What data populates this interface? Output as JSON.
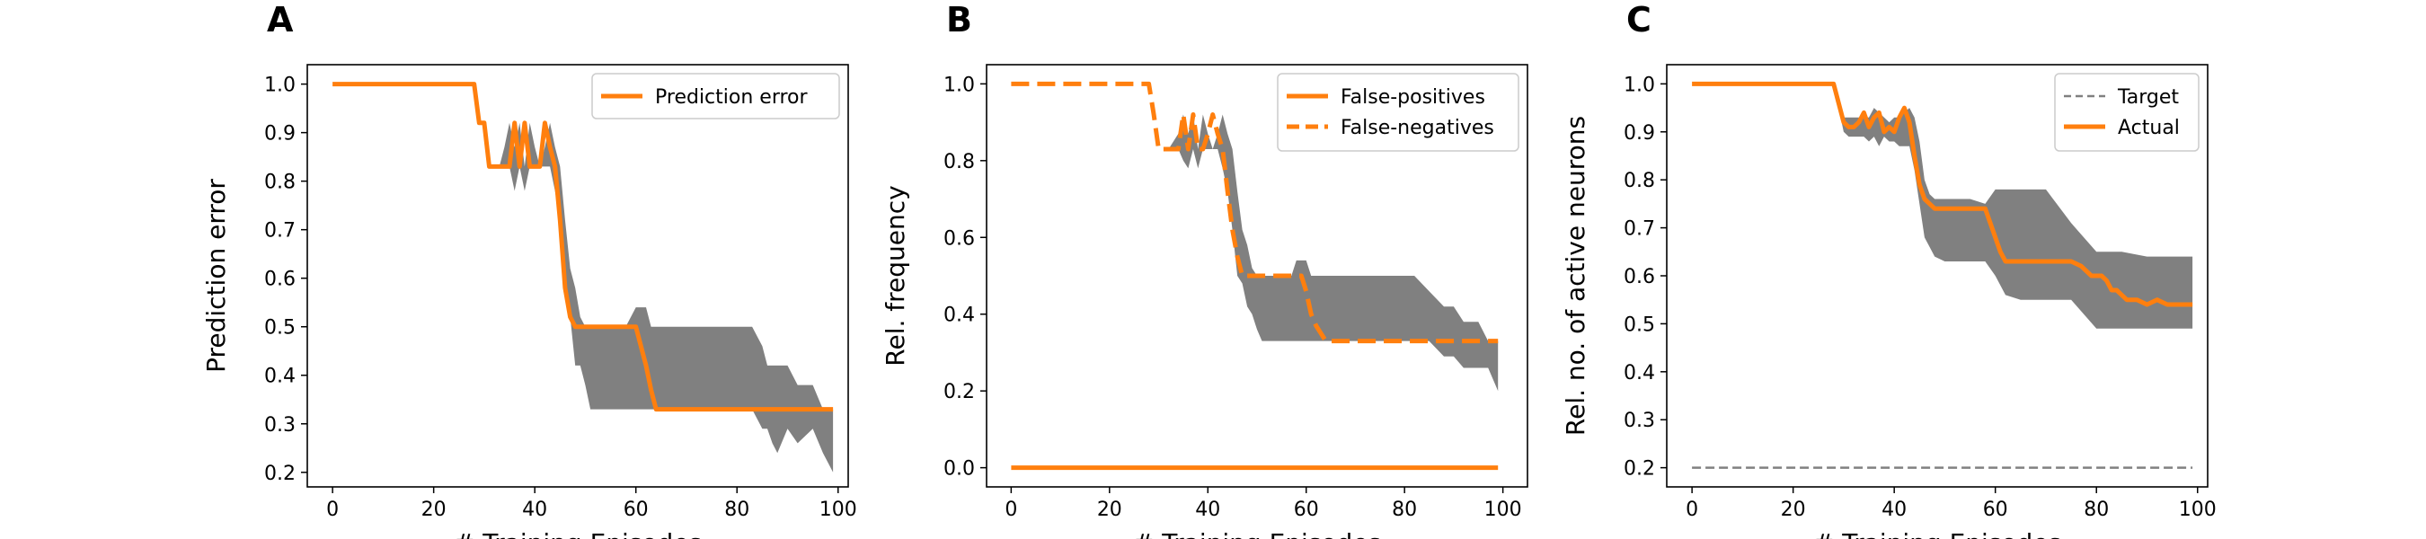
{
  "chart_data": [
    {
      "type": "line",
      "panel_label": "A",
      "xlabel": "# Training Episodes",
      "ylabel": "Prediction error",
      "xlim": [
        -5,
        102
      ],
      "ylim": [
        0.17,
        1.04
      ],
      "xticks": [
        0,
        20,
        40,
        60,
        80,
        100
      ],
      "yticks": [
        0.2,
        0.3,
        0.4,
        0.5,
        0.6,
        0.7,
        0.8,
        0.9,
        1.0
      ],
      "legend_position": "upper right",
      "colors": {
        "line": "#ff7f0e",
        "band": "#808080"
      },
      "band": {
        "x": [
          0,
          28,
          29,
          30,
          31,
          32,
          33,
          34,
          35,
          36,
          37,
          38,
          39,
          40,
          41,
          42,
          43,
          44,
          45,
          46,
          47,
          48,
          49,
          50,
          51,
          52,
          55,
          58,
          60,
          61,
          62,
          63,
          65,
          70,
          75,
          80,
          83,
          85,
          86,
          87,
          88,
          90,
          92,
          95,
          97,
          99
        ],
        "lower": [
          1.0,
          1.0,
          0.92,
          0.92,
          0.83,
          0.83,
          0.83,
          0.83,
          0.83,
          0.78,
          0.83,
          0.78,
          0.83,
          0.83,
          0.83,
          0.83,
          0.83,
          0.78,
          0.72,
          0.56,
          0.52,
          0.42,
          0.42,
          0.38,
          0.33,
          0.33,
          0.33,
          0.33,
          0.33,
          0.33,
          0.33,
          0.33,
          0.33,
          0.33,
          0.33,
          0.33,
          0.33,
          0.29,
          0.29,
          0.26,
          0.24,
          0.29,
          0.26,
          0.29,
          0.24,
          0.2
        ],
        "upper": [
          1.0,
          1.0,
          0.92,
          0.92,
          0.83,
          0.83,
          0.83,
          0.87,
          0.92,
          0.87,
          0.92,
          0.83,
          0.92,
          0.87,
          0.83,
          0.87,
          0.92,
          0.87,
          0.83,
          0.72,
          0.62,
          0.58,
          0.52,
          0.5,
          0.5,
          0.5,
          0.5,
          0.5,
          0.54,
          0.54,
          0.54,
          0.5,
          0.5,
          0.5,
          0.5,
          0.5,
          0.5,
          0.46,
          0.42,
          0.42,
          0.42,
          0.42,
          0.38,
          0.38,
          0.33,
          0.33
        ]
      },
      "series": [
        {
          "name": "Prediction error",
          "style": "solid",
          "x": [
            0,
            28,
            29,
            30,
            31,
            32,
            33,
            34,
            35,
            36,
            37,
            38,
            39,
            40,
            41,
            42,
            43,
            44,
            45,
            46,
            47,
            48,
            49,
            50,
            52,
            55,
            60,
            61,
            62,
            63,
            64,
            65,
            70,
            80,
            90,
            99
          ],
          "y": [
            1.0,
            1.0,
            0.92,
            0.92,
            0.83,
            0.83,
            0.83,
            0.83,
            0.83,
            0.92,
            0.83,
            0.92,
            0.83,
            0.83,
            0.83,
            0.92,
            0.87,
            0.83,
            0.72,
            0.58,
            0.52,
            0.5,
            0.5,
            0.5,
            0.5,
            0.5,
            0.5,
            0.46,
            0.42,
            0.37,
            0.33,
            0.33,
            0.33,
            0.33,
            0.33,
            0.33
          ]
        }
      ]
    },
    {
      "type": "line",
      "panel_label": "B",
      "xlabel": "# Training Episodes",
      "ylabel": "Rel. frequency",
      "xlim": [
        -5,
        105
      ],
      "ylim": [
        -0.05,
        1.05
      ],
      "xticks": [
        0,
        20,
        40,
        60,
        80,
        100
      ],
      "yticks": [
        0.0,
        0.2,
        0.4,
        0.6,
        0.8,
        1.0
      ],
      "legend_position": "upper right",
      "colors": {
        "line": "#ff7f0e",
        "band": "#808080"
      },
      "band": {
        "x": [
          28,
          30,
          32,
          34,
          35,
          36,
          37,
          38,
          39,
          40,
          41,
          42,
          43,
          44,
          45,
          46,
          47,
          48,
          49,
          50,
          51,
          52,
          55,
          57,
          58,
          59,
          60,
          61,
          62,
          63,
          64,
          65,
          70,
          80,
          82,
          85,
          88,
          90,
          92,
          95,
          97,
          99
        ],
        "lower": [
          1.0,
          0.83,
          0.83,
          0.83,
          0.8,
          0.78,
          0.83,
          0.78,
          0.83,
          0.83,
          0.83,
          0.83,
          0.78,
          0.72,
          0.62,
          0.5,
          0.48,
          0.42,
          0.4,
          0.36,
          0.33,
          0.33,
          0.33,
          0.33,
          0.33,
          0.33,
          0.33,
          0.33,
          0.33,
          0.33,
          0.33,
          0.33,
          0.33,
          0.33,
          0.33,
          0.33,
          0.29,
          0.29,
          0.26,
          0.26,
          0.26,
          0.2
        ],
        "upper": [
          1.0,
          0.83,
          0.83,
          0.87,
          0.92,
          0.87,
          0.92,
          0.83,
          0.92,
          0.87,
          0.83,
          0.87,
          0.92,
          0.87,
          0.83,
          0.72,
          0.62,
          0.58,
          0.52,
          0.5,
          0.5,
          0.5,
          0.5,
          0.5,
          0.54,
          0.54,
          0.54,
          0.5,
          0.5,
          0.5,
          0.5,
          0.5,
          0.5,
          0.5,
          0.5,
          0.46,
          0.42,
          0.42,
          0.38,
          0.38,
          0.33,
          0.33
        ]
      },
      "series": [
        {
          "name": "False-positives",
          "style": "solid",
          "x": [
            0,
            99
          ],
          "y": [
            0.0,
            0.0
          ]
        },
        {
          "name": "False-negatives",
          "style": "dashed",
          "x": [
            0,
            28,
            29,
            30,
            31,
            32,
            33,
            34,
            35,
            36,
            37,
            38,
            39,
            40,
            41,
            42,
            43,
            44,
            45,
            46,
            47,
            48,
            49,
            50,
            52,
            55,
            58,
            59,
            60,
            61,
            62,
            63,
            64,
            65,
            70,
            80,
            90,
            99
          ],
          "y": [
            1.0,
            1.0,
            0.92,
            0.83,
            0.83,
            0.83,
            0.83,
            0.83,
            0.92,
            0.83,
            0.92,
            0.83,
            0.83,
            0.87,
            0.92,
            0.87,
            0.83,
            0.72,
            0.62,
            0.55,
            0.5,
            0.5,
            0.5,
            0.5,
            0.5,
            0.5,
            0.5,
            0.5,
            0.46,
            0.4,
            0.37,
            0.35,
            0.33,
            0.33,
            0.33,
            0.33,
            0.33,
            0.33
          ]
        }
      ]
    },
    {
      "type": "line",
      "panel_label": "C",
      "xlabel": "# Training Episodes",
      "ylabel": "Rel. no. of active neurons",
      "xlim": [
        -5,
        102
      ],
      "ylim": [
        0.16,
        1.04
      ],
      "xticks": [
        0,
        20,
        40,
        60,
        80,
        100
      ],
      "yticks": [
        0.2,
        0.3,
        0.4,
        0.5,
        0.6,
        0.7,
        0.8,
        0.9,
        1.0
      ],
      "legend_position": "upper right",
      "colors": {
        "line": "#ff7f0e",
        "band": "#808080",
        "target": "#808080"
      },
      "band": {
        "x": [
          0,
          28,
          30,
          31,
          32,
          33,
          34,
          35,
          36,
          37,
          38,
          39,
          40,
          41,
          42,
          43,
          44,
          45,
          46,
          47,
          48,
          50,
          55,
          58,
          60,
          62,
          65,
          70,
          75,
          80,
          85,
          90,
          95,
          99
        ],
        "lower": [
          1.0,
          1.0,
          0.9,
          0.89,
          0.89,
          0.89,
          0.89,
          0.88,
          0.89,
          0.87,
          0.89,
          0.88,
          0.88,
          0.87,
          0.87,
          0.87,
          0.82,
          0.75,
          0.68,
          0.66,
          0.64,
          0.63,
          0.63,
          0.63,
          0.6,
          0.56,
          0.55,
          0.55,
          0.55,
          0.49,
          0.49,
          0.49,
          0.49,
          0.49
        ],
        "upper": [
          1.0,
          1.0,
          0.93,
          0.93,
          0.93,
          0.93,
          0.93,
          0.93,
          0.95,
          0.94,
          0.93,
          0.92,
          0.93,
          0.93,
          0.94,
          0.95,
          0.93,
          0.88,
          0.8,
          0.77,
          0.76,
          0.76,
          0.76,
          0.75,
          0.78,
          0.78,
          0.78,
          0.78,
          0.71,
          0.65,
          0.65,
          0.64,
          0.64,
          0.64
        ]
      },
      "series": [
        {
          "name": "Target",
          "style": "dashed-thin",
          "x": [
            0,
            99
          ],
          "y": [
            0.2,
            0.2
          ]
        },
        {
          "name": "Actual",
          "style": "solid",
          "x": [
            0,
            28,
            29,
            30,
            31,
            32,
            33,
            34,
            35,
            36,
            37,
            38,
            39,
            40,
            41,
            42,
            43,
            44,
            45,
            46,
            47,
            48,
            50,
            55,
            58,
            59,
            60,
            61,
            62,
            65,
            70,
            75,
            77,
            79,
            80,
            81,
            82,
            83,
            84,
            85,
            86,
            88,
            90,
            92,
            94,
            96,
            98,
            99
          ],
          "y": [
            1.0,
            1.0,
            0.96,
            0.92,
            0.91,
            0.91,
            0.92,
            0.94,
            0.91,
            0.93,
            0.94,
            0.9,
            0.91,
            0.9,
            0.93,
            0.95,
            0.92,
            0.85,
            0.79,
            0.76,
            0.75,
            0.74,
            0.74,
            0.74,
            0.74,
            0.71,
            0.68,
            0.65,
            0.63,
            0.63,
            0.63,
            0.63,
            0.62,
            0.6,
            0.6,
            0.6,
            0.59,
            0.57,
            0.57,
            0.56,
            0.55,
            0.55,
            0.54,
            0.55,
            0.54,
            0.54,
            0.54,
            0.54
          ]
        }
      ]
    }
  ]
}
